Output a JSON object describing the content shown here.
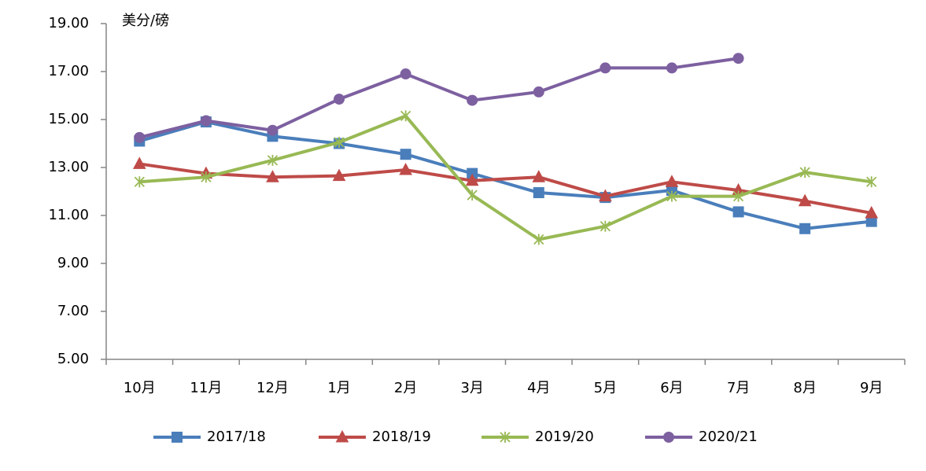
{
  "chart_data": {
    "type": "line",
    "y_axis_label": "美分/磅",
    "categories": [
      "10月",
      "11月",
      "12月",
      "1月",
      "2月",
      "3月",
      "4月",
      "5月",
      "6月",
      "7月",
      "8月",
      "9月"
    ],
    "series": [
      {
        "name": "2017/18",
        "color": "#4a7ebb",
        "marker": "square",
        "values": [
          14.1,
          14.9,
          14.3,
          14.0,
          13.55,
          12.75,
          11.95,
          11.75,
          12.05,
          11.15,
          10.45,
          10.75
        ]
      },
      {
        "name": "2018/19",
        "color": "#be4b48",
        "marker": "triangle",
        "values": [
          13.15,
          12.75,
          12.6,
          12.65,
          12.9,
          12.45,
          12.6,
          11.8,
          12.4,
          12.05,
          11.6,
          11.1
        ]
      },
      {
        "name": "2019/20",
        "color": "#98b954",
        "marker": "star",
        "values": [
          12.4,
          12.6,
          13.3,
          14.05,
          15.15,
          11.85,
          10.0,
          10.55,
          11.8,
          11.8,
          12.8,
          12.4
        ]
      },
      {
        "name": "2020/21",
        "color": "#7d60a0",
        "marker": "circle",
        "values": [
          14.25,
          14.95,
          14.55,
          15.85,
          16.9,
          15.8,
          16.15,
          17.15,
          17.15,
          17.55,
          null,
          null
        ]
      }
    ],
    "ylim": [
      5,
      19
    ],
    "yticks": [
      {
        "value": 5,
        "label": "5.00"
      },
      {
        "value": 7,
        "label": "7.00"
      },
      {
        "value": 9,
        "label": "9.00"
      },
      {
        "value": 11,
        "label": "11.00"
      },
      {
        "value": 13,
        "label": "13.00"
      },
      {
        "value": 15,
        "label": "15.00"
      },
      {
        "value": 17,
        "label": "17.00"
      },
      {
        "value": 19,
        "label": "19.00"
      }
    ],
    "grid": false,
    "legend": "bottom"
  }
}
